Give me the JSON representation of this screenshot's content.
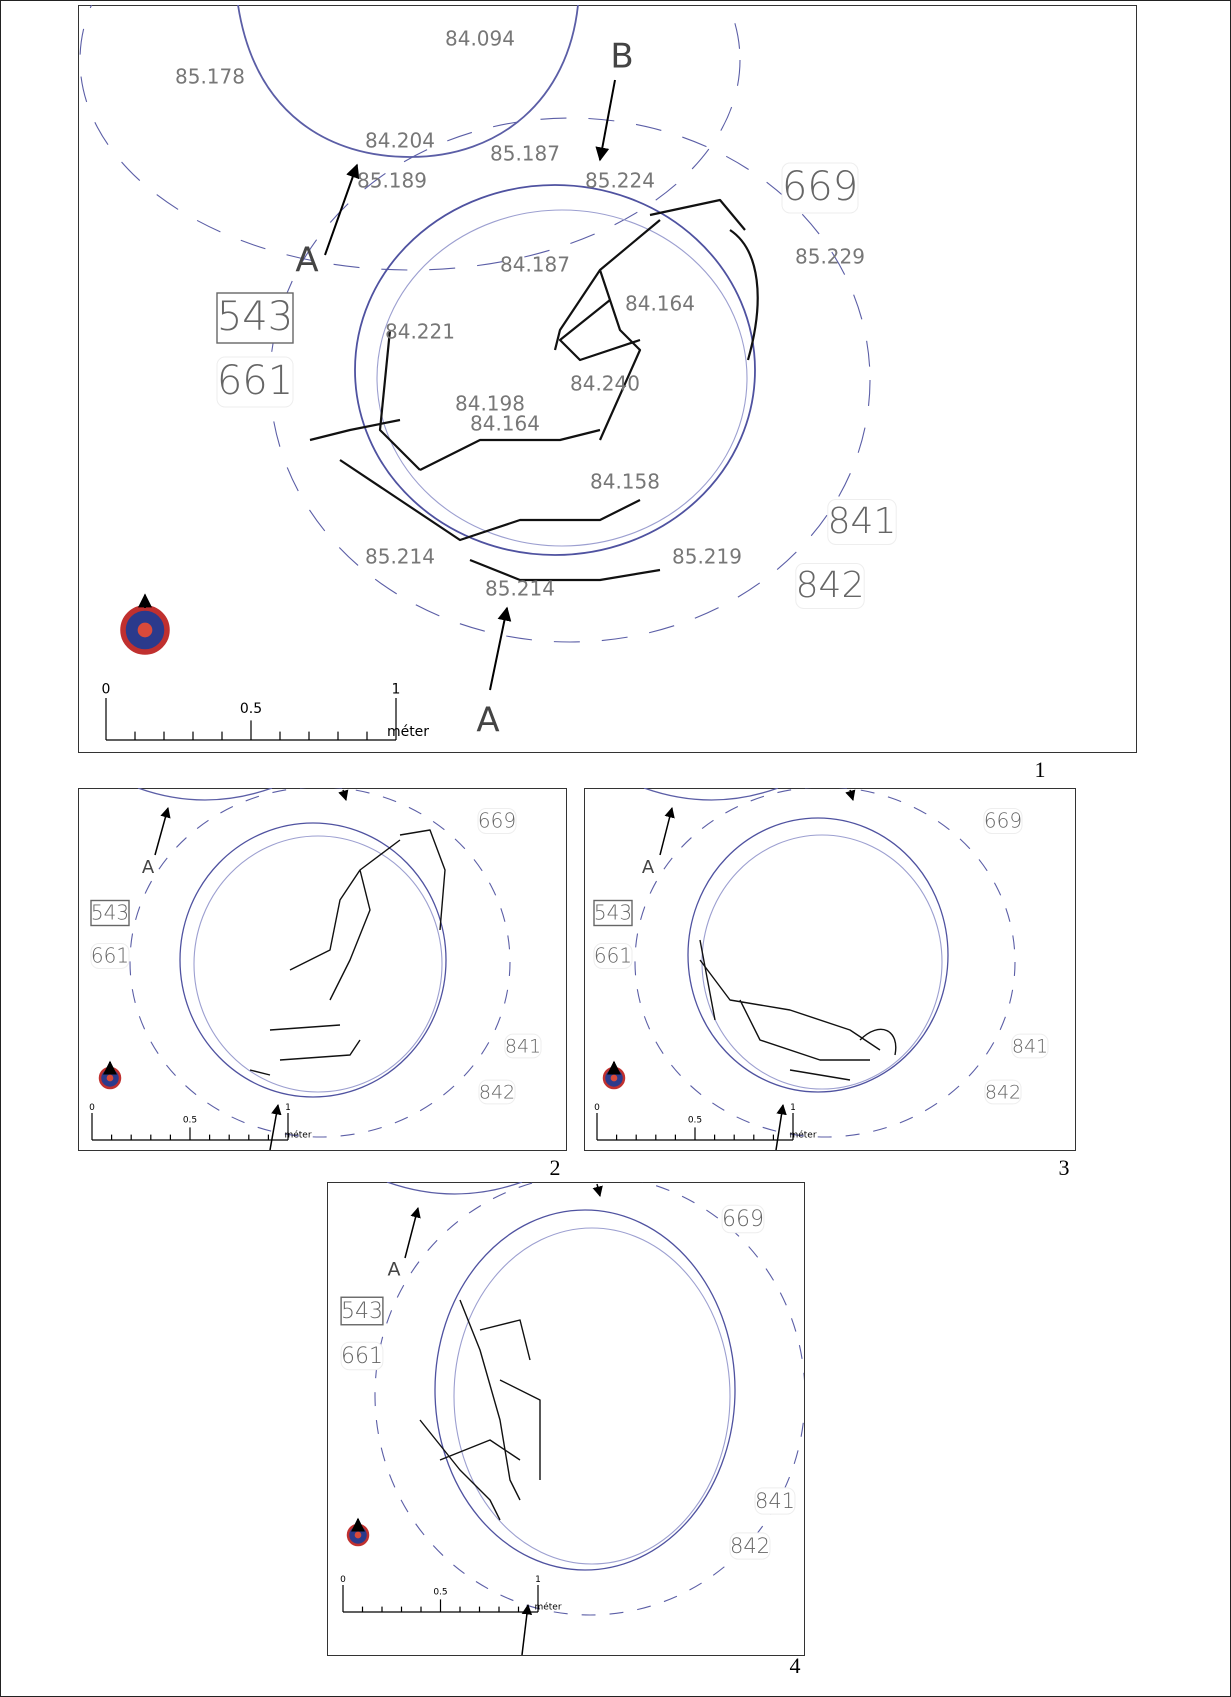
{
  "panels": [
    {
      "number": "1",
      "elevations": [
        "84.094",
        "85.178",
        "84.204",
        "85.187",
        "85.224",
        "85.189",
        "85.229",
        "84.187",
        "84.164",
        "84.221",
        "84.240",
        "84.198",
        "84.164",
        "84.158",
        "85.214",
        "85.214",
        "85.219"
      ],
      "features": [
        "669",
        "543",
        "661",
        "841",
        "842"
      ],
      "section_markers": [
        "B",
        "A",
        "A"
      ],
      "scale": {
        "ticks": [
          "0",
          "0.5",
          "1"
        ],
        "unit": "méter"
      }
    },
    {
      "number": "2",
      "features": [
        "669",
        "543",
        "661",
        "841",
        "842"
      ],
      "section_markers": [
        "A"
      ],
      "scale": {
        "ticks": [
          "0",
          "0.5",
          "1"
        ],
        "unit": "méter"
      }
    },
    {
      "number": "3",
      "features": [
        "669",
        "543",
        "661",
        "841",
        "842"
      ],
      "section_markers": [
        "A"
      ],
      "scale": {
        "ticks": [
          "0",
          "0.5",
          "1"
        ],
        "unit": "méter"
      }
    },
    {
      "number": "4",
      "features": [
        "669",
        "543",
        "661",
        "841",
        "842"
      ],
      "section_markers": [
        "A"
      ],
      "scale": {
        "ticks": [
          "0",
          "0.5",
          "1"
        ],
        "unit": "méter"
      }
    }
  ]
}
